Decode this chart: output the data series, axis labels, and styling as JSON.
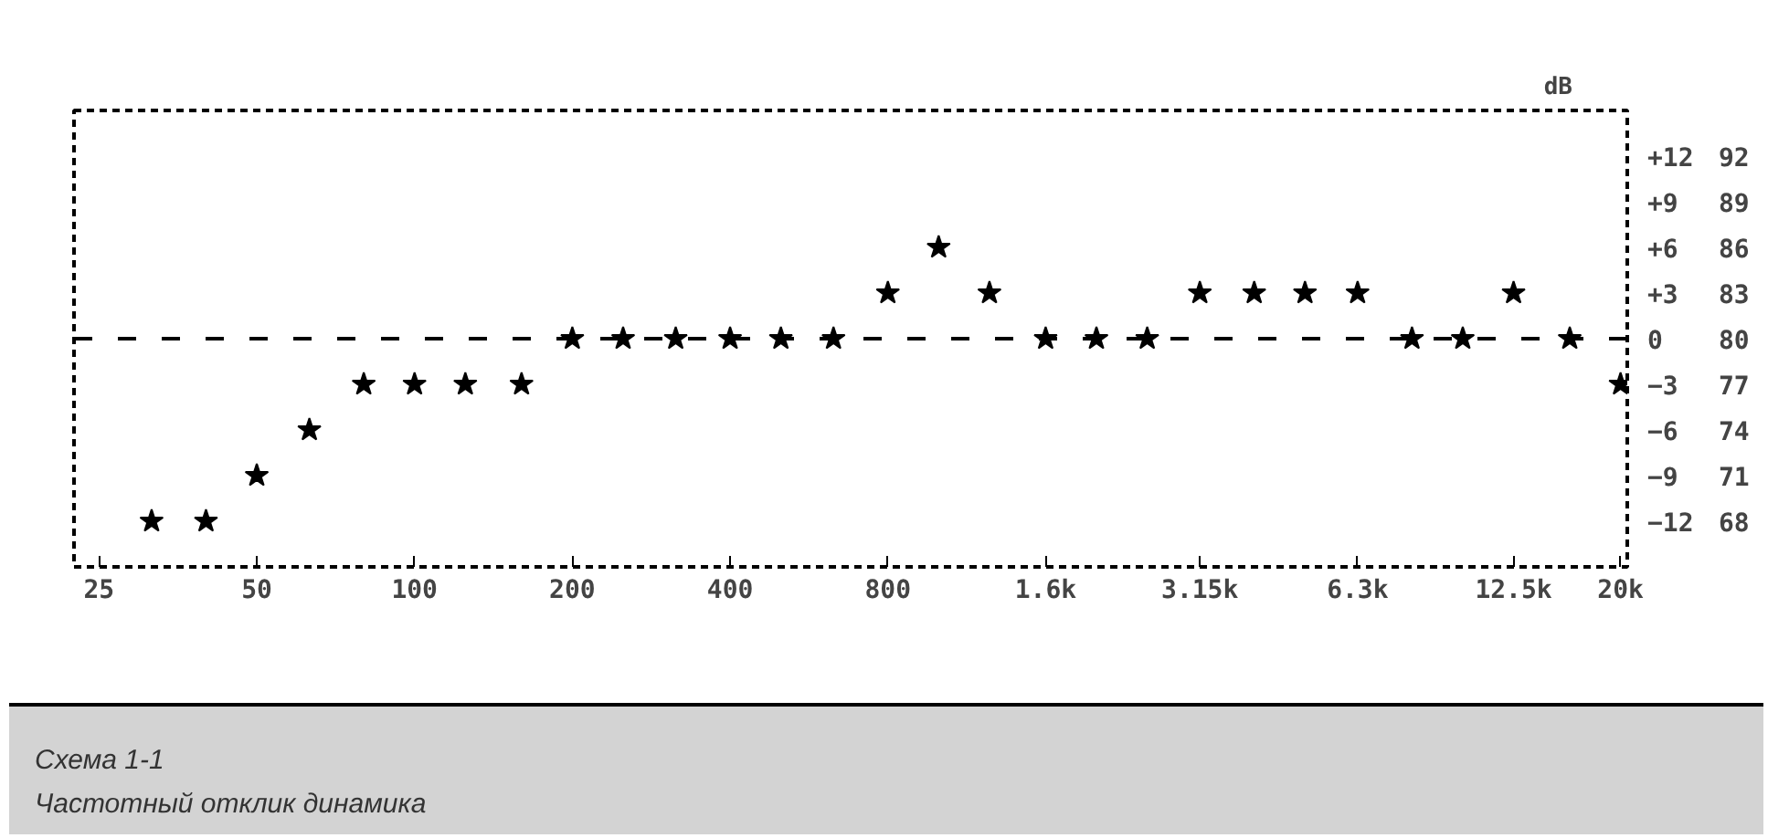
{
  "chart_data": {
    "type": "scatter",
    "ylabel": "dB",
    "x": [
      31.5,
      40,
      50,
      63,
      80,
      100,
      125,
      160,
      200,
      250,
      315,
      400,
      500,
      630,
      800,
      1000,
      1250,
      1600,
      2000,
      2500,
      3150,
      4000,
      5000,
      6300,
      8000,
      10000,
      12500,
      16000,
      20000
    ],
    "series": [
      {
        "color": "#000000",
        "values": [
          -12,
          -12,
          -9,
          -6,
          -3,
          -3,
          -3,
          -3,
          0,
          0,
          0,
          0,
          0,
          0,
          3,
          6,
          3,
          0,
          0,
          0,
          3,
          3,
          3,
          3,
          0,
          0,
          3,
          0,
          -3
        ]
      }
    ],
    "marker": "star",
    "log": "x",
    "grid": false,
    "xlim": [
      22.4,
      20600
    ],
    "xticks": [
      25,
      50,
      100,
      200,
      400,
      800,
      {
        "value": 1600,
        "label": "1.6k"
      },
      {
        "value": 3150,
        "label": "3.15k"
      },
      {
        "value": 6300,
        "label": "6.3k"
      },
      {
        "value": 12500,
        "label": "12.5k"
      },
      {
        "value": 20000,
        "label": "20k"
      }
    ],
    "ylim": [
      -15,
      15
    ],
    "yticks": [
      {
        "value": 12,
        "label": "+12"
      },
      {
        "value": 9,
        "label": "+9"
      },
      {
        "value": 6,
        "label": "+6"
      },
      {
        "value": 3,
        "label": "+3"
      },
      0,
      -3,
      -6,
      -9,
      -12
    ],
    "y2lim": [
      65,
      95
    ],
    "y2ticks": [
      92,
      89,
      86,
      83,
      80,
      77,
      74,
      71,
      68
    ],
    "ref_lines": [
      {
        "axis": "y",
        "value": 0,
        "line_style": "dashed"
      }
    ],
    "annotations": [
      "Схема 1-1",
      "Частотный отклик динамика"
    ]
  }
}
